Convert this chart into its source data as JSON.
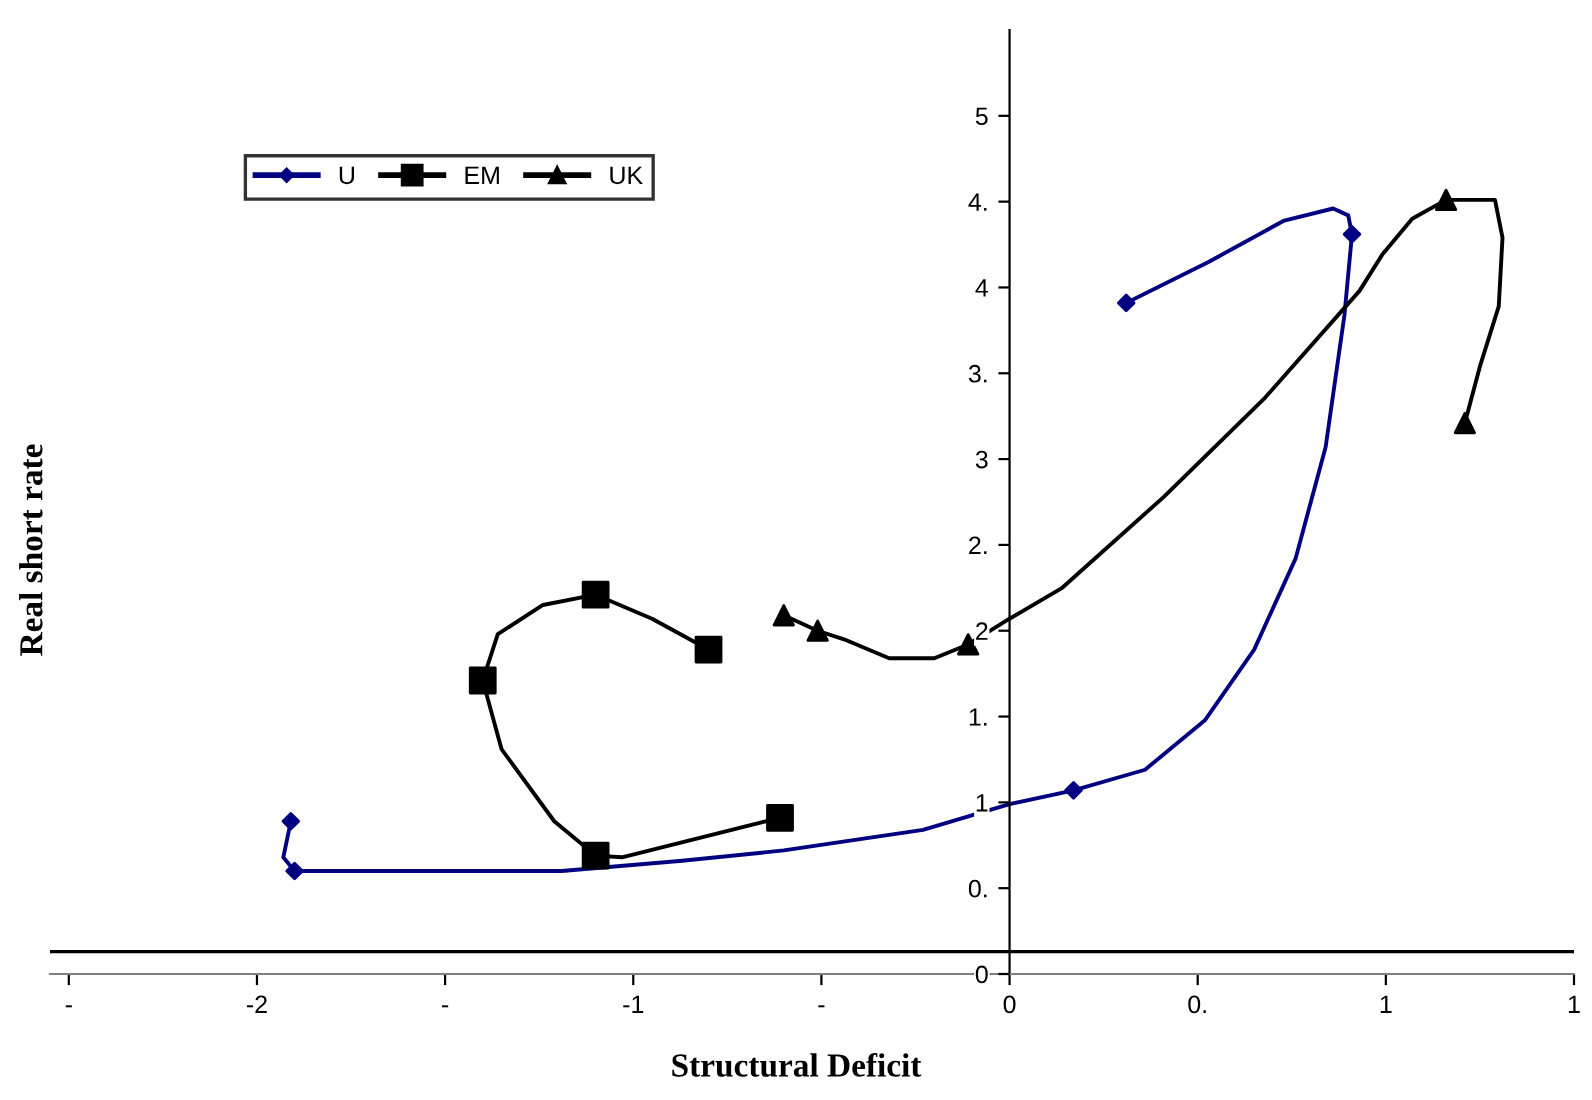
{
  "chart_data": {
    "type": "line",
    "xlabel": "Structural Deficit",
    "ylabel": "Real short rate",
    "xlim": [
      -2.55,
      1.5
    ],
    "ylim": [
      0,
      5.5
    ],
    "xticks": [
      {
        "value": -2.5,
        "label": "-"
      },
      {
        "value": -2,
        "label": "-2"
      },
      {
        "value": -1.5,
        "label": "-"
      },
      {
        "value": -1,
        "label": "-1"
      },
      {
        "value": -0.5,
        "label": "-"
      },
      {
        "value": 0,
        "label": "0"
      },
      {
        "value": 0.5,
        "label": "0."
      },
      {
        "value": 1,
        "label": "1"
      },
      {
        "value": 1.5,
        "label": "1"
      }
    ],
    "yticks": [
      {
        "value": 0,
        "label": "0"
      },
      {
        "value": 0.5,
        "label": "0."
      },
      {
        "value": 1,
        "label": "1"
      },
      {
        "value": 1.5,
        "label": "1."
      },
      {
        "value": 2,
        "label": "2"
      },
      {
        "value": 2.5,
        "label": "2."
      },
      {
        "value": 3,
        "label": "3"
      },
      {
        "value": 3.5,
        "label": "3."
      },
      {
        "value": 4,
        "label": "4"
      },
      {
        "value": 4.5,
        "label": "4."
      },
      {
        "value": 5,
        "label": "5"
      }
    ],
    "legend": "top left",
    "grid": false,
    "line_style": "solid",
    "ref_lines": [
      {
        "axis": "y",
        "value": 0.13,
        "color": "#000000"
      }
    ],
    "series": [
      {
        "name": "U",
        "color": "#000080",
        "x": [
          0.31,
          0.53,
          0.73,
          0.86,
          0.9,
          0.91,
          0.89,
          0.84,
          0.76,
          0.65,
          0.52,
          0.36,
          0.17,
          0,
          -0.23,
          -0.6,
          -0.87,
          -1.19,
          -1.29,
          -1.9,
          -1.93,
          -1.91
        ],
        "values": [
          3.91,
          4.15,
          4.39,
          4.46,
          4.42,
          4.31,
          3.84,
          3.07,
          2.42,
          1.89,
          1.48,
          1.19,
          1.07,
          0.99,
          0.84,
          0.72,
          0.66,
          0.6,
          0.6,
          0.6,
          0.68,
          0.89
        ]
      },
      {
        "name": "EM",
        "color": "#000000",
        "x": [
          -0.61,
          -1.03,
          -1.1,
          -1.21,
          -1.35,
          -1.4,
          -1.36,
          -1.24,
          -1.1,
          -0.95,
          -0.8
        ],
        "values": [
          0.91,
          0.68,
          0.69,
          0.89,
          1.31,
          1.71,
          1.98,
          2.15,
          2.21,
          2.07,
          1.89
        ]
      },
      {
        "name": "UK",
        "color": "#000000",
        "x": [
          1.21,
          1.25,
          1.3,
          1.31,
          1.29,
          1.16,
          1.07,
          0.99,
          0.93,
          0.68,
          0.41,
          0.14,
          0,
          -0.11,
          -0.2,
          -0.32,
          -0.44,
          -0.51,
          -0.6
        ],
        "values": [
          3.21,
          3.54,
          3.89,
          4.29,
          4.51,
          4.51,
          4.4,
          4.19,
          3.98,
          3.36,
          2.78,
          2.25,
          2.07,
          1.92,
          1.84,
          1.84,
          1.95,
          2.0,
          2.09
        ]
      },
      {
        "color": "#000080",
        "type": "scatter",
        "marker": "diamond",
        "x": [
          0.31,
          0.91,
          0.17,
          -1.9,
          -1.91
        ],
        "values": [
          3.91,
          4.31,
          1.07,
          0.6,
          0.89
        ]
      },
      {
        "color": "#000000",
        "type": "scatter",
        "marker": "square",
        "x": [
          -0.61,
          -1.1,
          -1.4,
          -1.1,
          -0.8
        ],
        "values": [
          0.91,
          0.69,
          1.71,
          2.21,
          1.89
        ]
      },
      {
        "color": "#000000",
        "type": "scatter",
        "marker": "triangle",
        "x": [
          1.21,
          1.16,
          -0.11,
          -0.51,
          -0.6
        ],
        "values": [
          3.21,
          4.51,
          1.92,
          2.0,
          2.09
        ]
      }
    ]
  }
}
